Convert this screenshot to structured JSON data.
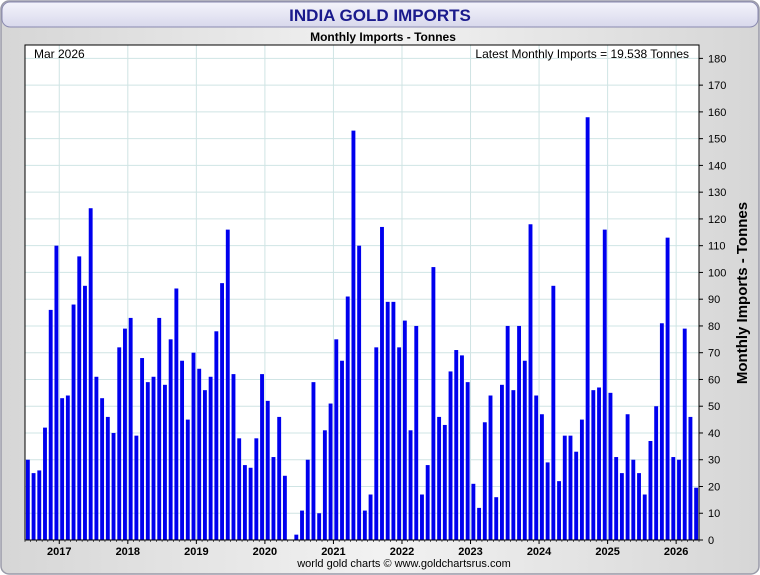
{
  "chart_data": {
    "type": "bar",
    "title": "INDIA GOLD IMPORTS",
    "subtitle": "Monthly Imports - Tonnes",
    "date_label": "Mar 2026",
    "latest_label": "Latest Monthly Imports = 19.538 Tonnes",
    "ylabel": "Monthly Imports - Tonnes",
    "footer": "world gold charts © www.goldchartsrus.com",
    "ylim": [
      0,
      185
    ],
    "yticks": [
      0,
      10,
      20,
      30,
      40,
      50,
      60,
      70,
      80,
      90,
      100,
      110,
      120,
      130,
      140,
      150,
      160,
      170,
      180
    ],
    "x_start": "2016-07",
    "x_ticks": [
      {
        "label": "2017",
        "month_index": 6
      },
      {
        "label": "2018",
        "month_index": 18
      },
      {
        "label": "2019",
        "month_index": 30
      },
      {
        "label": "2020",
        "month_index": 42
      },
      {
        "label": "2021",
        "month_index": 54
      },
      {
        "label": "2022",
        "month_index": 66
      },
      {
        "label": "2023",
        "month_index": 78
      },
      {
        "label": "2024",
        "month_index": 90
      },
      {
        "label": "2025",
        "month_index": 102
      },
      {
        "label": "2026",
        "month_index": 114
      }
    ],
    "values": [
      30,
      25,
      26,
      42,
      86,
      110,
      53,
      54,
      88,
      106,
      95,
      124,
      61,
      53,
      46,
      40,
      72,
      79,
      83,
      39,
      68,
      59,
      61,
      83,
      58,
      75,
      94,
      67,
      45,
      70,
      64,
      56,
      61,
      78,
      96,
      116,
      62,
      38,
      28,
      27,
      38,
      62,
      52,
      31,
      46,
      24,
      0,
      2,
      11,
      30,
      59,
      10,
      41,
      51,
      75,
      67,
      91,
      153,
      110,
      11,
      17,
      72,
      117,
      89,
      89,
      72,
      82,
      41,
      80,
      17,
      28,
      102,
      46,
      43,
      63,
      71,
      69,
      59,
      21,
      12,
      44,
      54,
      16,
      58,
      80,
      56,
      80,
      67,
      118,
      54,
      47,
      29,
      95,
      22,
      39,
      39,
      33,
      45,
      158,
      56,
      57,
      116,
      55,
      31,
      25,
      47,
      30,
      25,
      17,
      37,
      50,
      81,
      113,
      31,
      30,
      79,
      46,
      19.538
    ],
    "colors": {
      "bar": "#0000ee",
      "title_text": "#1a1a8c",
      "title_bg": "#e2e2f2",
      "frame": "#a9a9b8",
      "grid": "#cfe4e4"
    }
  }
}
